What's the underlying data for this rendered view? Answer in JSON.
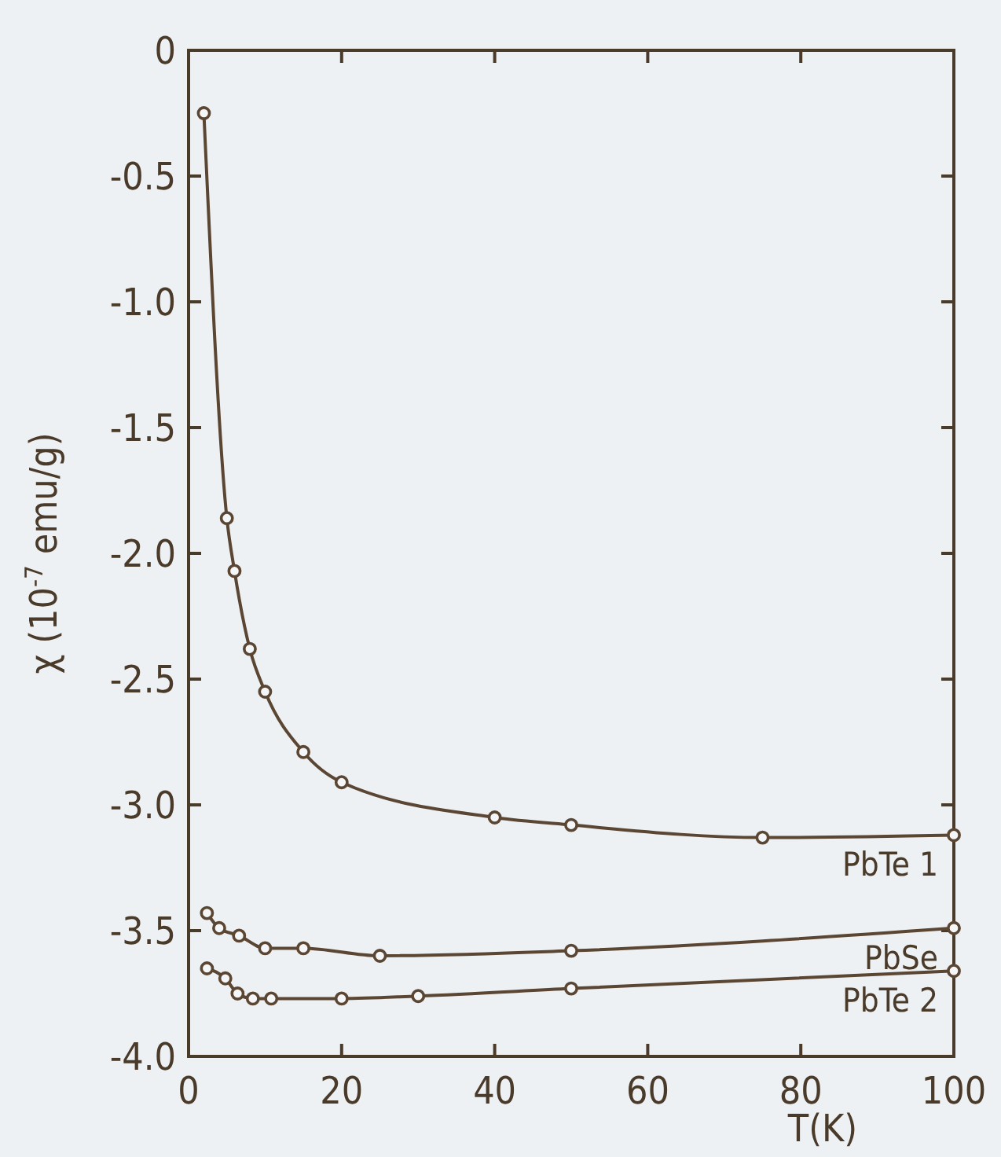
{
  "chart_data": {
    "type": "line",
    "xlabel": "T(K)",
    "ylabel": "χ (10$^{-7}$ emu/g)",
    "xlim": [
      0,
      100
    ],
    "xticks": [
      0,
      20,
      40,
      60,
      80,
      100
    ],
    "ylim": [
      -4.0,
      0
    ],
    "yticks": [
      0,
      {
        "value": -0.5,
        "label": "-0.5"
      },
      {
        "value": -1.0,
        "label": "-1.0"
      },
      {
        "value": -1.5,
        "label": "-1.5"
      },
      {
        "value": -2.0,
        "label": "-2.0"
      },
      {
        "value": -2.5,
        "label": "-2.5"
      },
      {
        "value": -3.0,
        "label": "-3.0"
      },
      {
        "value": -3.5,
        "label": "-3.5"
      },
      {
        "value": -4.0,
        "label": "-4.0"
      }
    ],
    "grid": false,
    "legend": "right",
    "marker": "circle",
    "line_style": "solid",
    "series": [
      {
        "name": "PbTe 1",
        "color": "#5a4632",
        "x": [
          2,
          5,
          6,
          8,
          10,
          15,
          20,
          40,
          50,
          75,
          100
        ],
        "values": [
          -0.25,
          -1.86,
          -2.07,
          -2.38,
          -2.55,
          -2.79,
          -2.91,
          -3.05,
          -3.08,
          -3.13,
          -3.12
        ]
      },
      {
        "name": "PbSe",
        "color": "#5a4632",
        "x": [
          2.4,
          4,
          6.6,
          10,
          15,
          25,
          50,
          100
        ],
        "values": [
          -3.43,
          -3.49,
          -3.52,
          -3.57,
          -3.57,
          -3.6,
          -3.58,
          -3.49
        ]
      },
      {
        "name": "PbTe 2",
        "color": "#5a4632",
        "x": [
          2.4,
          4.8,
          6.4,
          8.4,
          10.8,
          20,
          30,
          50,
          100
        ],
        "values": [
          -3.65,
          -3.69,
          -3.75,
          -3.77,
          -3.77,
          -3.77,
          -3.76,
          -3.73,
          -3.66
        ]
      }
    ]
  }
}
